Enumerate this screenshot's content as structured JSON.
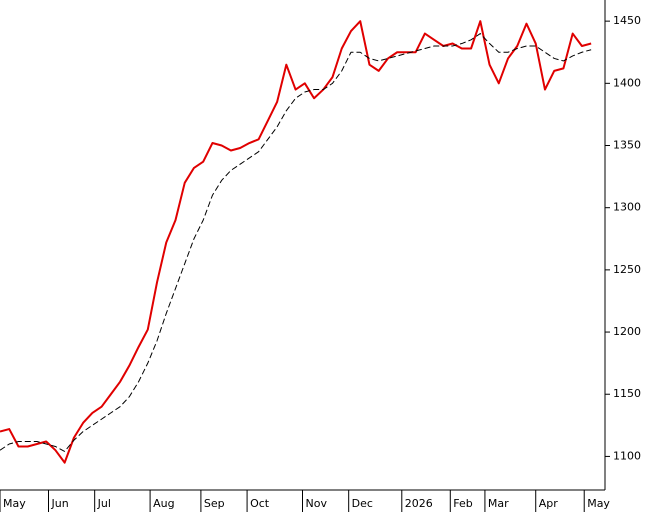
{
  "chart_data": {
    "type": "line",
    "x": [
      0,
      4,
      8,
      12,
      16,
      20,
      24,
      28,
      32,
      36,
      40,
      44,
      48,
      52,
      56,
      60,
      64,
      68,
      72,
      76,
      80,
      84,
      88,
      92,
      96,
      100,
      104,
      108,
      112,
      116,
      120,
      124,
      128,
      132,
      136,
      140,
      144,
      148,
      152,
      156,
      160,
      164,
      168,
      172,
      176,
      180,
      184,
      188,
      192,
      196,
      200,
      204,
      208,
      212,
      216,
      220,
      224,
      228,
      232,
      236,
      240,
      244,
      248,
      252,
      256
    ],
    "series": [
      {
        "color": "#e00000",
        "dash": "solid",
        "width": 2,
        "values": [
          1120,
          1122,
          1108,
          1108,
          1110,
          1112,
          1105,
          1095,
          1115,
          1127,
          1135,
          1140,
          1150,
          1160,
          1173,
          1188,
          1202,
          1240,
          1272,
          1290,
          1320,
          1332,
          1337,
          1352,
          1350,
          1346,
          1348,
          1352,
          1355,
          1370,
          1385,
          1415,
          1395,
          1400,
          1388,
          1395,
          1405,
          1428,
          1442,
          1450,
          1415,
          1410,
          1420,
          1425,
          1425,
          1425,
          1440,
          1435,
          1430,
          1432,
          1428,
          1428,
          1450,
          1415,
          1400,
          1420,
          1430,
          1448,
          1432,
          1395,
          1410,
          1412,
          1440,
          1430,
          1432
        ]
      },
      {
        "color": "#000000",
        "dash": "dashed",
        "width": 1,
        "values": [
          1105,
          1110,
          1112,
          1112,
          1112,
          1110,
          1108,
          1104,
          1113,
          1120,
          1125,
          1130,
          1135,
          1140,
          1148,
          1160,
          1175,
          1193,
          1215,
          1235,
          1255,
          1275,
          1290,
          1310,
          1322,
          1330,
          1335,
          1340,
          1345,
          1355,
          1365,
          1378,
          1388,
          1393,
          1395,
          1395,
          1400,
          1410,
          1425,
          1425,
          1420,
          1418,
          1420,
          1422,
          1424,
          1426,
          1428,
          1430,
          1430,
          1430,
          1432,
          1435,
          1440,
          1432,
          1425,
          1425,
          1428,
          1430,
          1430,
          1425,
          1420,
          1418,
          1422,
          1425,
          1427
        ]
      }
    ],
    "xlim": [
      0,
      262
    ],
    "xticks": [
      {
        "value": 0,
        "label": "May"
      },
      {
        "value": 21,
        "label": "Jun"
      },
      {
        "value": 41,
        "label": "Jul"
      },
      {
        "value": 65,
        "label": "Aug"
      },
      {
        "value": 87,
        "label": "Sep"
      },
      {
        "value": 107,
        "label": "Oct"
      },
      {
        "value": 131,
        "label": "Nov"
      },
      {
        "value": 151,
        "label": "Dec"
      },
      {
        "value": 174,
        "label": "2026"
      },
      {
        "value": 195,
        "label": "Feb"
      },
      {
        "value": 210,
        "label": "Mar"
      },
      {
        "value": 232,
        "label": "Apr"
      },
      {
        "value": 253,
        "label": "May"
      }
    ],
    "ylim": [
      1073,
      1467
    ],
    "yticks": [
      1100,
      1150,
      1200,
      1250,
      1300,
      1350,
      1400,
      1450
    ],
    "grid": false
  }
}
